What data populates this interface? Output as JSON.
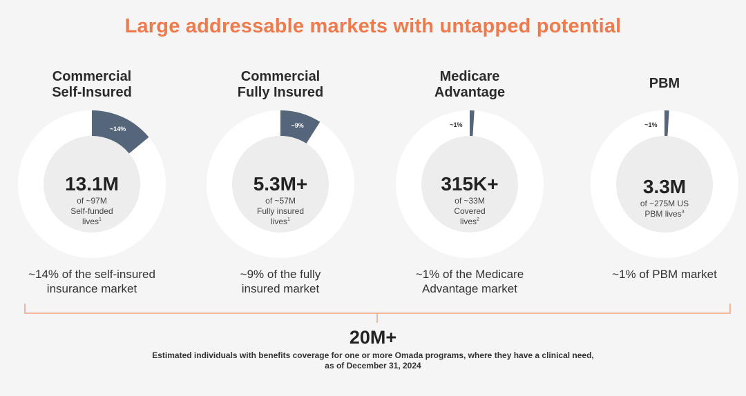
{
  "title": "Large addressable markets with untapped potential",
  "colors": {
    "accent": "#ee7a4d",
    "slice": "#55667a",
    "ring": "#ffffff",
    "center": "#ededed"
  },
  "chart_data": {
    "type": "pie",
    "title": "Large addressable markets with untapped potential",
    "segments": [
      {
        "title_lines": [
          "Commercial",
          "Self-Insured"
        ],
        "share_percent": 14,
        "share_label": "~14%",
        "big": "13.1M",
        "detail_lines": [
          "of ~97M",
          "Self-funded",
          "lives"
        ],
        "footnote_ref": "1",
        "caption_lines": [
          "~14% of the self-insured",
          "insurance market"
        ]
      },
      {
        "title_lines": [
          "Commercial",
          "Fully Insured"
        ],
        "share_percent": 9,
        "share_label": "~9%",
        "big": "5.3M+",
        "detail_lines": [
          "of ~57M",
          "Fully insured",
          "lives"
        ],
        "footnote_ref": "1",
        "caption_lines": [
          "~9% of the fully",
          "insured market"
        ]
      },
      {
        "title_lines": [
          "Medicare",
          "Advantage"
        ],
        "share_percent": 1,
        "share_label": "~1%",
        "big": "315K+",
        "detail_lines": [
          "of ~33M",
          "Covered",
          "lives"
        ],
        "footnote_ref": "2",
        "caption_lines": [
          "~1% of the Medicare",
          "Advantage market"
        ]
      },
      {
        "title_lines": [
          "PBM"
        ],
        "share_percent": 1,
        "share_label": "~1%",
        "big": "3.3M",
        "detail_lines": [
          "of ~275M US",
          "PBM lives"
        ],
        "footnote_ref": "3",
        "caption_lines": [
          "~1% of PBM market"
        ]
      }
    ],
    "total": "20M+",
    "total_note_lines": [
      "Estimated individuals with benefits coverage for one or more Omada programs, where they have a clinical need,",
      "as of December 31, 2024"
    ]
  }
}
